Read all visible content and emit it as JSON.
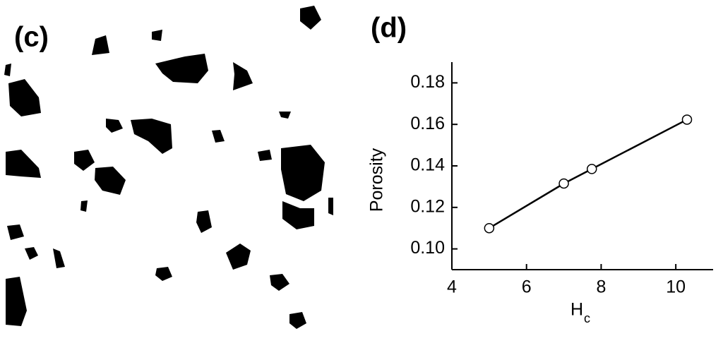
{
  "image_panel": {
    "label": "(c)"
  },
  "chart_data": {
    "type": "line",
    "panel_label": "(d)",
    "xlabel": "H",
    "xlabel_subscript": "c",
    "ylabel": "Porosity",
    "x": [
      5,
      7,
      7.75,
      10.3
    ],
    "series": [
      {
        "values": [
          0.11,
          0.1315,
          0.1385,
          0.1623
        ],
        "color": "#000000"
      }
    ],
    "xlim": [
      4,
      11
    ],
    "xticks": [
      4,
      6,
      8,
      10
    ],
    "ylim": [
      0.09,
      0.19
    ],
    "yticks": [
      {
        "value": 0.1,
        "label": "0.10"
      },
      0.12,
      0.14,
      0.16,
      0.18
    ],
    "grid": false
  }
}
